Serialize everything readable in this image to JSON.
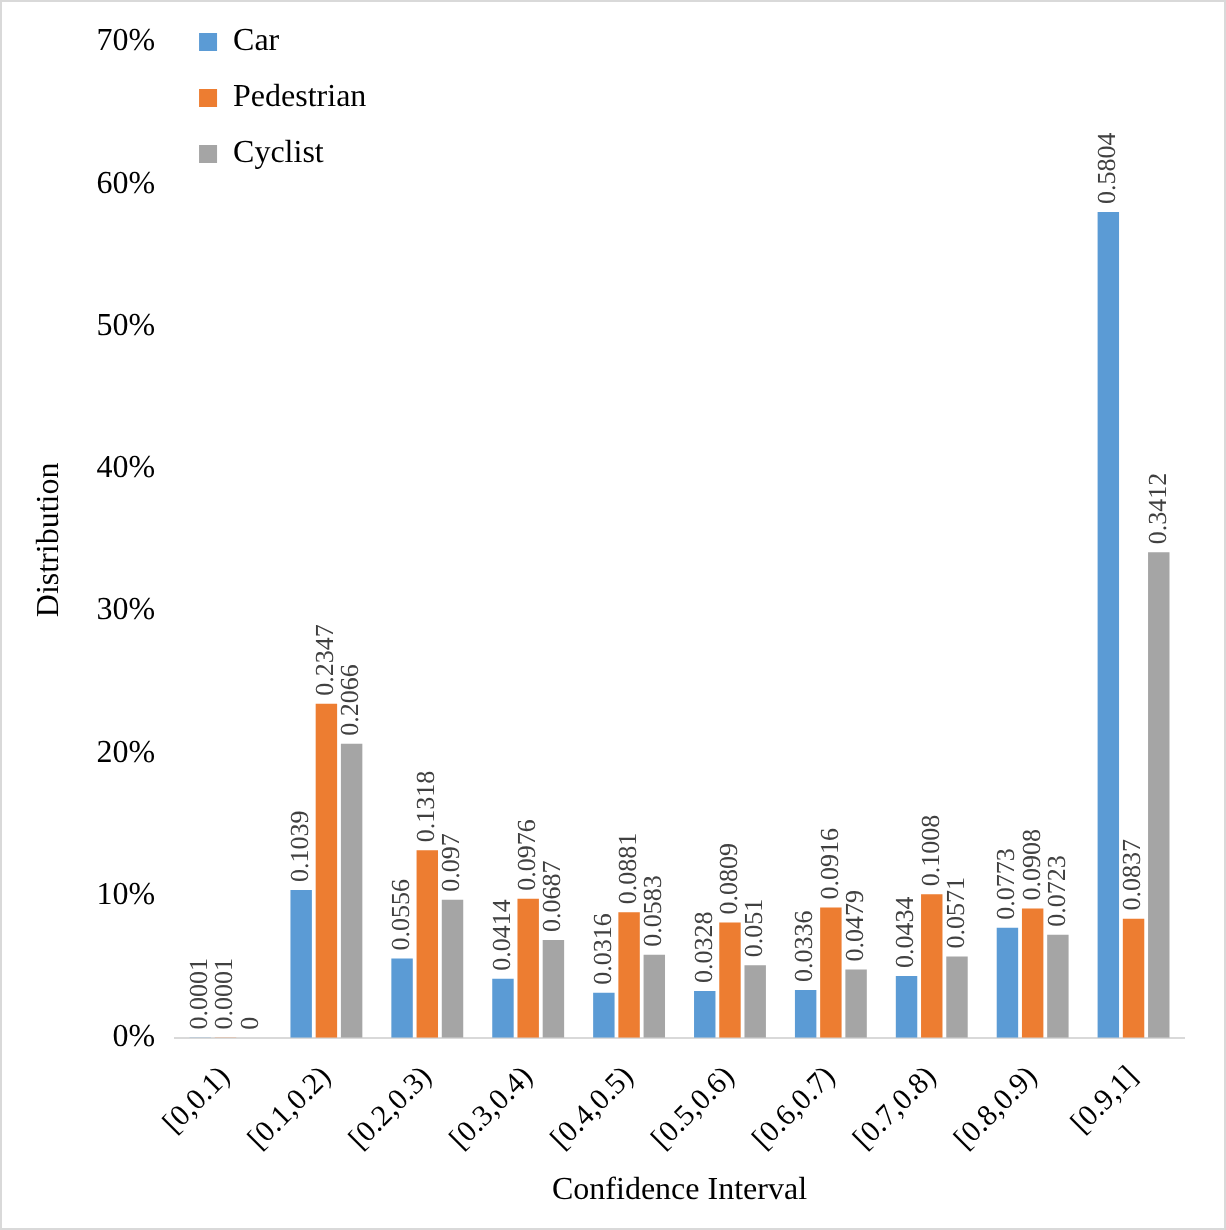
{
  "chart_data": {
    "type": "bar",
    "xlabel": "Confidence Interval",
    "ylabel": "Distribution",
    "categories": [
      "[0,0.1)",
      "[0.1,0.2)",
      "[0.2,0.3)",
      "[0.3,0.4)",
      "[0.4,0.5)",
      "[0.5,0.6)",
      "[0.6,0.7)",
      "[0.7,0.8)",
      "[0.8,0.9)",
      "[0.9,1]"
    ],
    "series": [
      {
        "name": "Car",
        "color": "#5b9bd5",
        "values": [
          0.0001,
          0.1039,
          0.0556,
          0.0414,
          0.0316,
          0.0328,
          0.0336,
          0.0434,
          0.0773,
          0.5804
        ]
      },
      {
        "name": "Pedestrian",
        "color": "#ed7d31",
        "values": [
          0.0001,
          0.2347,
          0.1318,
          0.0976,
          0.0881,
          0.0809,
          0.0916,
          0.1008,
          0.0908,
          0.0837
        ]
      },
      {
        "name": "Cyclist",
        "color": "#a5a5a5",
        "values": [
          0,
          0.2066,
          0.097,
          0.0687,
          0.0583,
          0.051,
          0.0479,
          0.0571,
          0.0723,
          0.3412
        ]
      }
    ],
    "ylim": [
      0,
      0.7
    ],
    "yticks": [
      {
        "value": 0,
        "label": "0%"
      },
      {
        "value": 0.1,
        "label": "10%"
      },
      {
        "value": 0.2,
        "label": "20%"
      },
      {
        "value": 0.3,
        "label": "30%"
      },
      {
        "value": 0.4,
        "label": "40%"
      },
      {
        "value": 0.5,
        "label": "50%"
      },
      {
        "value": 0.6,
        "label": "60%"
      },
      {
        "value": 0.7,
        "label": "70%"
      }
    ],
    "data_labels": true,
    "legend": "top left",
    "grid": false
  }
}
